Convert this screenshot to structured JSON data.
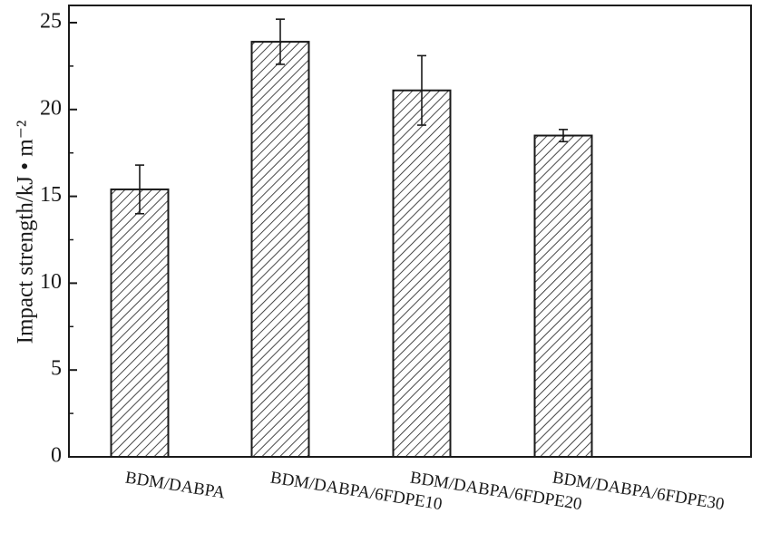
{
  "chart_data": {
    "type": "bar",
    "title": "",
    "xlabel": "",
    "ylabel": "Impact strength/kJ • m⁻²",
    "ylim": [
      0,
      25
    ],
    "yticks": [
      0,
      5,
      10,
      15,
      20,
      25
    ],
    "grid": false,
    "categories": [
      "BDM/DABPA",
      "BDM/DABPA/6FDPE10",
      "BDM/DABPA/6FDPE20",
      "BDM/DABPA/6FDPE30"
    ],
    "values": [
      15.4,
      23.9,
      21.1,
      18.5
    ],
    "errors": [
      1.4,
      1.3,
      2.0,
      0.35
    ],
    "bar_fill": "hatched",
    "colors": {
      "bar_stroke": "#1a1a1a",
      "axis": "#1a1a1a",
      "hatch": "#1a1a1a",
      "background": "#ffffff"
    }
  }
}
